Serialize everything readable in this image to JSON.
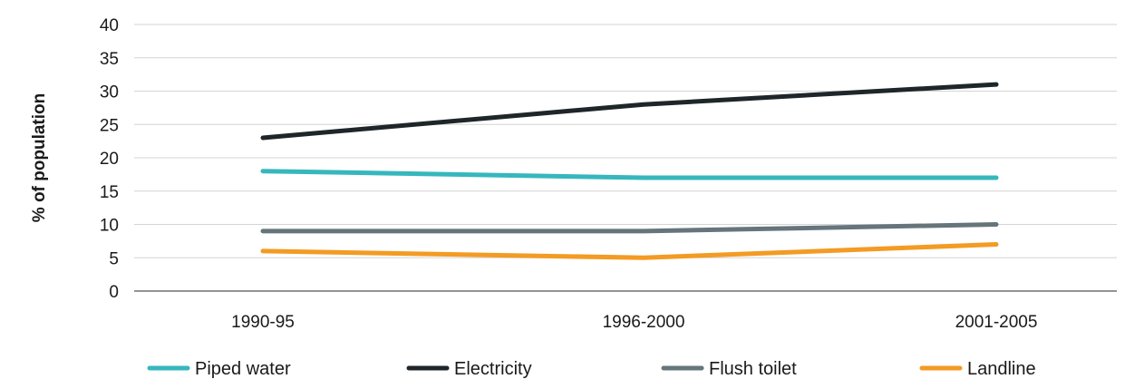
{
  "chart_data": {
    "type": "line",
    "title": "",
    "xlabel": "",
    "ylabel": "% of population",
    "categories": [
      "1990-95",
      "1996-2000",
      "2001-2005"
    ],
    "ylim": [
      0,
      40
    ],
    "yticks": [
      "0",
      "5",
      "10",
      "15",
      "20",
      "25",
      "30",
      "35",
      "40"
    ],
    "grid": true,
    "legend_position": "bottom",
    "series": [
      {
        "name": "Piped water",
        "values": [
          18,
          17,
          17
        ],
        "color": "#36b7bd"
      },
      {
        "name": "Electricity",
        "values": [
          23,
          28,
          31
        ],
        "color": "#1f2629"
      },
      {
        "name": "Flush toilet",
        "values": [
          9,
          9,
          10
        ],
        "color": "#66757b"
      },
      {
        "name": "Landline",
        "values": [
          6,
          5,
          7
        ],
        "color": "#f39b23"
      }
    ]
  }
}
